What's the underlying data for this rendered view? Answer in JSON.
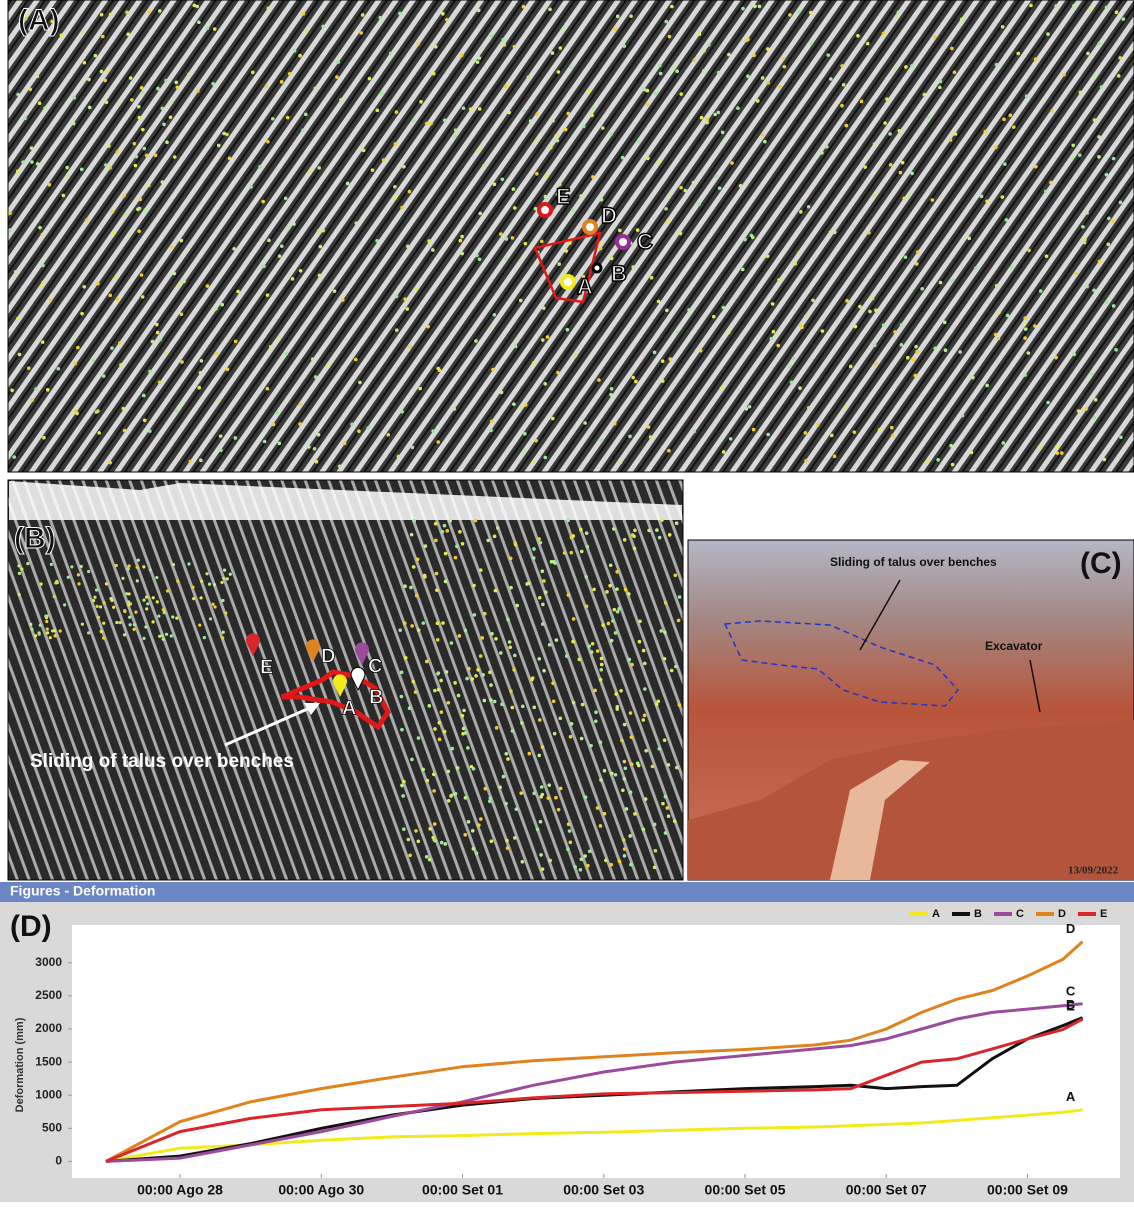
{
  "panel_a": {
    "label": "(A)",
    "markers": [
      "E",
      "D",
      "C",
      "B",
      "A"
    ]
  },
  "panel_b": {
    "label": "(B)",
    "markers": [
      "E",
      "D",
      "C",
      "B",
      "A"
    ],
    "annotation": "Sliding of talus over benches"
  },
  "panel_c": {
    "label": "(C)",
    "annotation": "Sliding of talus over benches",
    "excavator": "Excavator",
    "date": "13/09/2022"
  },
  "window_title": "Figures - Deformation",
  "chart_data": {
    "type": "line",
    "panel_label": "(D)",
    "y_label": "Deformation (mm)",
    "legend": "top-right",
    "x": [
      -1.05,
      0,
      1,
      2,
      3,
      4,
      5,
      6,
      7,
      8,
      9,
      9.5,
      10,
      10.5,
      11,
      11.5,
      12,
      12.5,
      12.78
    ],
    "xlim": [
      -1.53,
      13.31
    ],
    "xticks": [
      {
        "value": 0,
        "label": "00:00 Ago 28"
      },
      {
        "value": 2,
        "label": "00:00 Ago 30"
      },
      {
        "value": 4,
        "label": "00:00 Set 01"
      },
      {
        "value": 6,
        "label": "00:00 Set 03"
      },
      {
        "value": 8,
        "label": "00:00 Set 05"
      },
      {
        "value": 10,
        "label": "00:00 Set 07"
      },
      {
        "value": 12,
        "label": "00:00 Set 09"
      }
    ],
    "ylim": [
      -250,
      3570
    ],
    "yticks": [
      0,
      500,
      1000,
      1500,
      2000,
      2500,
      3000
    ],
    "series": [
      {
        "name": "A",
        "color": "#f2ea1a",
        "values": [
          0,
          200,
          250,
          320,
          370,
          390,
          420,
          440,
          470,
          500,
          520,
          540,
          560,
          580,
          620,
          660,
          700,
          740,
          780
        ]
      },
      {
        "name": "B",
        "color": "#111111",
        "values": [
          0,
          80,
          270,
          500,
          700,
          850,
          950,
          1000,
          1050,
          1100,
          1130,
          1150,
          1100,
          1130,
          1150,
          1550,
          1850,
          2050,
          2170
        ]
      },
      {
        "name": "C",
        "color": "#9c4a9c",
        "values": [
          0,
          50,
          250,
          450,
          680,
          900,
          1150,
          1350,
          1500,
          1600,
          1700,
          1750,
          1850,
          2000,
          2150,
          2250,
          2300,
          2350,
          2380
        ]
      },
      {
        "name": "D",
        "color": "#e0821e",
        "values": [
          0,
          600,
          900,
          1100,
          1270,
          1430,
          1520,
          1580,
          1640,
          1690,
          1760,
          1830,
          2000,
          2250,
          2450,
          2580,
          2800,
          3050,
          3320
        ]
      },
      {
        "name": "E",
        "color": "#d9262a",
        "values": [
          0,
          450,
          650,
          780,
          830,
          880,
          960,
          1020,
          1040,
          1060,
          1080,
          1100,
          1300,
          1500,
          1550,
          1700,
          1850,
          1990,
          2150
        ]
      }
    ]
  }
}
